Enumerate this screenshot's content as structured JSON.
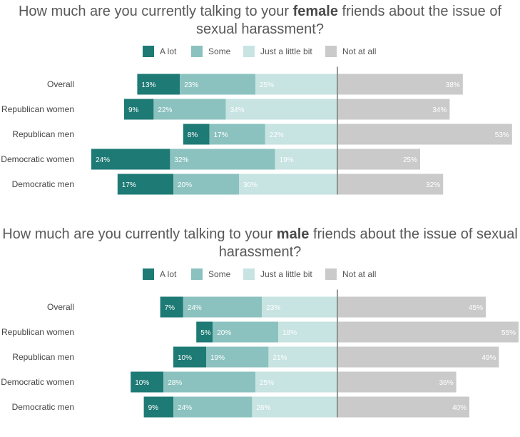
{
  "charts": [
    {
      "title_pre": "How much are you currently talking to your ",
      "title_bold": "female",
      "title_post": " friends about the issue of sexual harassment?"
    },
    {
      "title_pre": "How much are you currently talking to your ",
      "title_bold": "male",
      "title_post": " friends about the issue of sexual harassment?"
    }
  ],
  "legend": [
    "A lot",
    "Some",
    "Just a little bit",
    "Not at all"
  ],
  "colors": {
    "a_lot": "#1e7a75",
    "some": "#8bc2bf",
    "little": "#c7e3e2",
    "not_at_all": "#cacaca",
    "center_line": "#333333"
  },
  "chart_data": [
    {
      "type": "bar",
      "stacking": "diverging",
      "title": "How much are you currently talking to your female friends about the issue of sexual harassment?",
      "categories": [
        "Overall",
        "Republican women",
        "Republican men",
        "Democratic women",
        "Democratic men"
      ],
      "series": [
        {
          "name": "A lot",
          "values": [
            13,
            9,
            8,
            24,
            17
          ],
          "labels": [
            "13%",
            "9%",
            "8%",
            "24%",
            "17%"
          ]
        },
        {
          "name": "Some",
          "values": [
            23,
            22,
            17,
            32,
            20
          ],
          "labels": [
            "23%",
            "22%",
            "17%",
            "32%",
            "20%"
          ]
        },
        {
          "name": "Just a little bit",
          "values": [
            25,
            34,
            22,
            19,
            30
          ],
          "labels": [
            "25%",
            "34%",
            "22%",
            "19%",
            "30%"
          ]
        },
        {
          "name": "Not at all",
          "values": [
            38,
            34,
            53,
            25,
            32
          ],
          "labels": [
            "38%",
            "34%",
            "53%",
            "25%",
            "32%"
          ]
        }
      ],
      "legend_position": "top"
    },
    {
      "type": "bar",
      "stacking": "diverging",
      "title": "How much are you currently talking to your male friends about the issue of sexual harassment?",
      "categories": [
        "Overall",
        "Republican women",
        "Republican men",
        "Democratic women",
        "Democratic men"
      ],
      "series": [
        {
          "name": "A lot",
          "values": [
            7,
            5,
            10,
            10,
            9
          ],
          "labels": [
            "7%",
            "5%",
            "10%",
            "10%",
            "9%"
          ]
        },
        {
          "name": "Some",
          "values": [
            24,
            20,
            19,
            28,
            24
          ],
          "labels": [
            "24%",
            "20%",
            "19%",
            "28%",
            "24%"
          ]
        },
        {
          "name": "Just a little bit",
          "values": [
            23,
            18,
            21,
            25,
            26
          ],
          "labels": [
            "23%",
            "18%",
            "21%",
            "25%",
            "26%"
          ]
        },
        {
          "name": "Not at all",
          "values": [
            45,
            55,
            49,
            36,
            40
          ],
          "labels": [
            "45%",
            "55%",
            "49%",
            "36%",
            "40%"
          ]
        }
      ],
      "legend_position": "top"
    }
  ]
}
